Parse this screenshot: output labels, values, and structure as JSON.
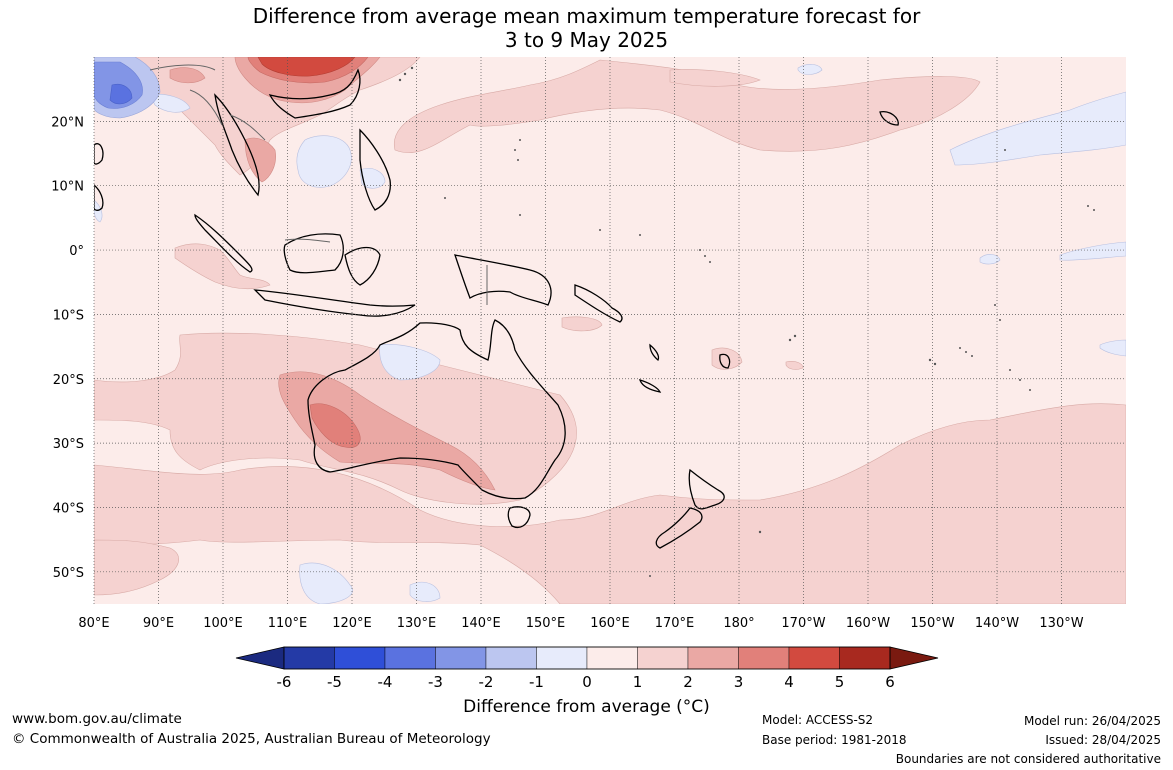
{
  "title": {
    "line1": "Difference from average mean maximum temperature forecast for",
    "line2": "3 to 9 May 2025"
  },
  "map": {
    "lon_range": [
      80,
      240
    ],
    "lat_range": [
      -55,
      30
    ],
    "lon_tick_labels": [
      "80°E",
      "90°E",
      "100°E",
      "110°E",
      "120°E",
      "130°E",
      "140°E",
      "150°E",
      "160°E",
      "170°E",
      "180°",
      "170°W",
      "160°W",
      "150°W",
      "140°W",
      "130°W"
    ],
    "lat_tick_labels": [
      "20°N",
      "10°N",
      "0°",
      "10°S",
      "20°S",
      "30°S",
      "40°S",
      "50°S"
    ],
    "lat_tick_values": [
      20,
      10,
      0,
      -10,
      -20,
      -30,
      -40,
      -50
    ],
    "grid": true
  },
  "colorbar": {
    "ticks": [
      "-6",
      "-5",
      "-4",
      "-3",
      "-2",
      "-1",
      "0",
      "1",
      "2",
      "3",
      "4",
      "5",
      "6"
    ],
    "colors": [
      "#243aa6",
      "#2f4fd8",
      "#5a72e0",
      "#8295e6",
      "#bcc6f0",
      "#e7ebfb",
      "#fcecea",
      "#f5d2d0",
      "#eaa8a4",
      "#e1807a",
      "#d24a3f",
      "#a8291f"
    ],
    "under_color": "#1b2a80",
    "over_color": "#7a1a10",
    "label": "Difference from average (°C)"
  },
  "footer": {
    "url": "www.bom.gov.au/climate",
    "copyright": "© Commonwealth of Australia 2025, Australian Bureau of Meteorology",
    "model": "Model: ACCESS-S2",
    "base_period": "Base period: 1981-2018",
    "model_run": "Model run: 26/04/2025",
    "issued": "Issued: 28/04/2025",
    "disclaimer": "Boundaries are not considered authoritative"
  }
}
